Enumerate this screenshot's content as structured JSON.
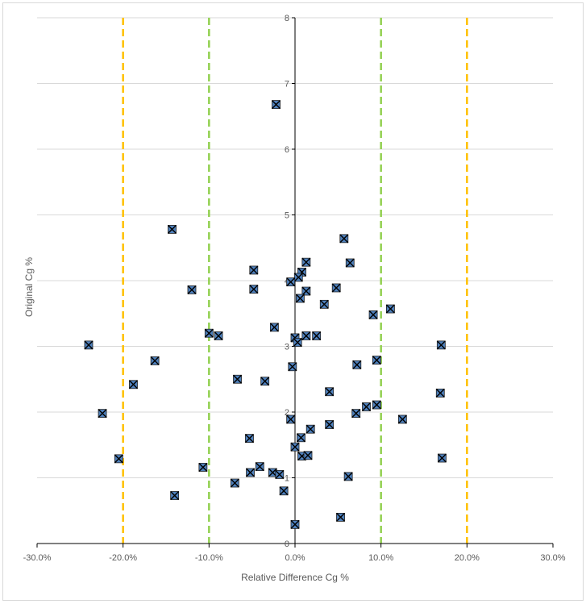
{
  "chart_data": {
    "type": "scatter",
    "title": "",
    "xlabel": "Relative Difference Cg %",
    "ylabel": "Original Cg %",
    "xlim": [
      -30,
      30
    ],
    "ylim": [
      0,
      8
    ],
    "x_ticks": [
      {
        "value": -30,
        "label": "-30.0%"
      },
      {
        "value": -20,
        "label": "-20.0%"
      },
      {
        "value": -10,
        "label": "-10.0%"
      },
      {
        "value": 0,
        "label": "0.0%"
      },
      {
        "value": 10,
        "label": "10.0%"
      },
      {
        "value": 20,
        "label": "20.0%"
      },
      {
        "value": 30,
        "label": "30.0%"
      }
    ],
    "y_ticks": [
      {
        "value": 0,
        "label": "0"
      },
      {
        "value": 1,
        "label": "1"
      },
      {
        "value": 2,
        "label": "2"
      },
      {
        "value": 3,
        "label": "3"
      },
      {
        "value": 4,
        "label": "4"
      },
      {
        "value": 5,
        "label": "5"
      },
      {
        "value": 6,
        "label": "6"
      },
      {
        "value": 7,
        "label": "7"
      },
      {
        "value": 8,
        "label": "8"
      }
    ],
    "grid": "horizontal",
    "marker": {
      "shape": "square-with-x",
      "fill": "#4f81bd",
      "stroke": "#000000"
    },
    "reference_lines": [
      {
        "x": -20,
        "color": "#ffc000",
        "style": "dashed"
      },
      {
        "x": 20,
        "color": "#ffc000",
        "style": "dashed"
      },
      {
        "x": -10,
        "color": "#92d050",
        "style": "dashed"
      },
      {
        "x": 10,
        "color": "#92d050",
        "style": "dashed"
      }
    ],
    "points": [
      {
        "x": -2.2,
        "y": 6.68
      },
      {
        "x": -14.3,
        "y": 4.78
      },
      {
        "x": 5.7,
        "y": 4.64
      },
      {
        "x": 1.3,
        "y": 4.28
      },
      {
        "x": 6.4,
        "y": 4.27
      },
      {
        "x": -4.8,
        "y": 4.16
      },
      {
        "x": 0.8,
        "y": 4.13
      },
      {
        "x": 0.4,
        "y": 4.05
      },
      {
        "x": -0.5,
        "y": 3.98
      },
      {
        "x": 4.8,
        "y": 3.89
      },
      {
        "x": -12.0,
        "y": 3.86
      },
      {
        "x": -4.8,
        "y": 3.87
      },
      {
        "x": 1.3,
        "y": 3.84
      },
      {
        "x": 0.6,
        "y": 3.73
      },
      {
        "x": 3.4,
        "y": 3.64
      },
      {
        "x": 11.1,
        "y": 3.57
      },
      {
        "x": 9.1,
        "y": 3.48
      },
      {
        "x": -2.4,
        "y": 3.29
      },
      {
        "x": -10.0,
        "y": 3.2
      },
      {
        "x": -8.9,
        "y": 3.16
      },
      {
        "x": 1.3,
        "y": 3.16
      },
      {
        "x": 2.5,
        "y": 3.16
      },
      {
        "x": 0.0,
        "y": 3.13
      },
      {
        "x": 0.3,
        "y": 3.06
      },
      {
        "x": -24.0,
        "y": 3.02
      },
      {
        "x": 17.0,
        "y": 3.02
      },
      {
        "x": 9.5,
        "y": 2.79
      },
      {
        "x": -16.3,
        "y": 2.78
      },
      {
        "x": 7.2,
        "y": 2.72
      },
      {
        "x": -0.3,
        "y": 2.69
      },
      {
        "x": -6.7,
        "y": 2.5
      },
      {
        "x": -3.5,
        "y": 2.47
      },
      {
        "x": -18.8,
        "y": 2.42
      },
      {
        "x": 4.0,
        "y": 2.31
      },
      {
        "x": 16.9,
        "y": 2.29
      },
      {
        "x": 9.5,
        "y": 2.11
      },
      {
        "x": 8.3,
        "y": 2.08
      },
      {
        "x": -22.4,
        "y": 1.98
      },
      {
        "x": 7.1,
        "y": 1.98
      },
      {
        "x": 12.5,
        "y": 1.89
      },
      {
        "x": -0.5,
        "y": 1.89
      },
      {
        "x": 4.0,
        "y": 1.81
      },
      {
        "x": 1.8,
        "y": 1.74
      },
      {
        "x": 0.7,
        "y": 1.61
      },
      {
        "x": -5.3,
        "y": 1.6
      },
      {
        "x": 0.0,
        "y": 1.47
      },
      {
        "x": 0.8,
        "y": 1.33
      },
      {
        "x": 1.5,
        "y": 1.34
      },
      {
        "x": -20.5,
        "y": 1.29
      },
      {
        "x": 17.1,
        "y": 1.3
      },
      {
        "x": -10.7,
        "y": 1.16
      },
      {
        "x": -4.1,
        "y": 1.17
      },
      {
        "x": -2.6,
        "y": 1.08
      },
      {
        "x": -5.2,
        "y": 1.08
      },
      {
        "x": -1.8,
        "y": 1.05
      },
      {
        "x": 6.2,
        "y": 1.02
      },
      {
        "x": -7.0,
        "y": 0.92
      },
      {
        "x": -1.3,
        "y": 0.8
      },
      {
        "x": -14.0,
        "y": 0.73
      },
      {
        "x": 5.3,
        "y": 0.4
      },
      {
        "x": 0.0,
        "y": 0.29
      }
    ]
  }
}
